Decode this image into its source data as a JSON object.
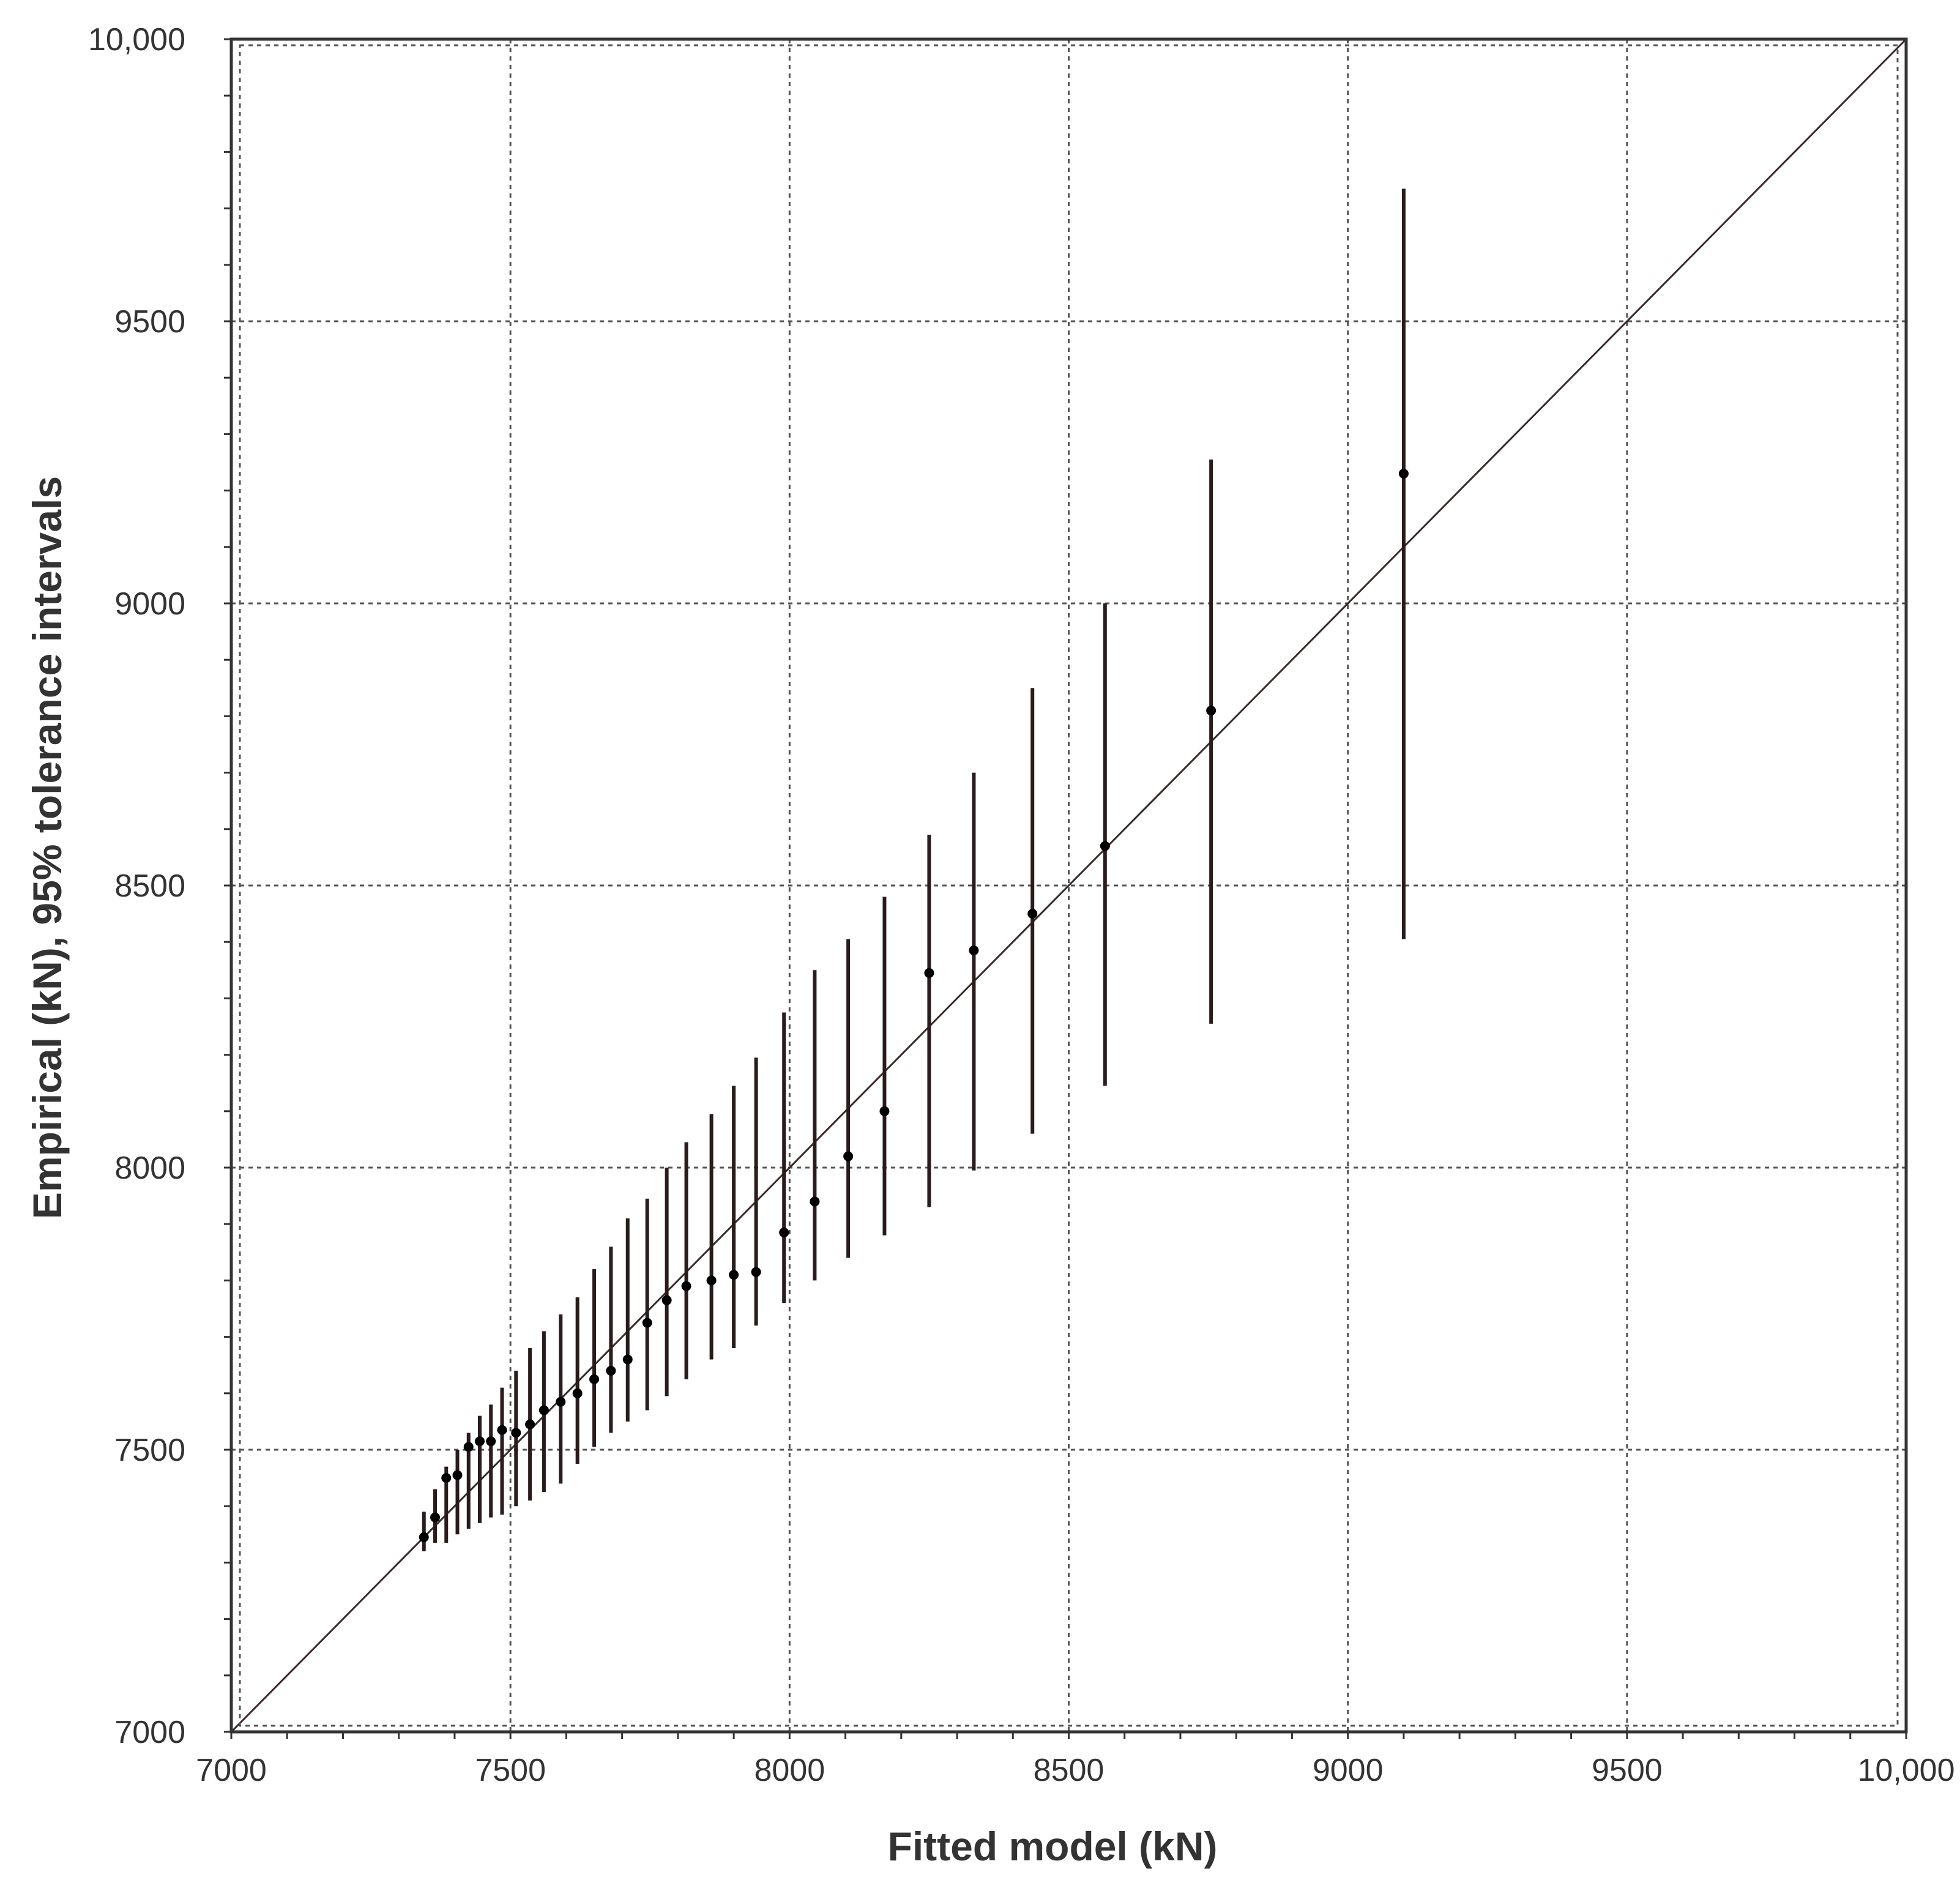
{
  "chart_data": {
    "type": "scatter",
    "title": "",
    "xlabel": "Fitted model (kN)",
    "ylabel": "Empirical (kN), 95% tolerance intervals",
    "xlim": [
      7000,
      10000
    ],
    "ylim": [
      7000,
      10000
    ],
    "x_ticks": [
      7000,
      7500,
      8000,
      8500,
      9000,
      9500,
      10000
    ],
    "x_tick_labels": [
      "7000",
      "7500",
      "8000",
      "8500",
      "9000",
      "9500",
      "10,000"
    ],
    "y_ticks": [
      7000,
      7500,
      8000,
      8500,
      9000,
      9500,
      10000
    ],
    "y_tick_labels": [
      "7000",
      "7500",
      "8000",
      "8500",
      "9000",
      "9500",
      "10,000"
    ],
    "grid": true,
    "reference_line": {
      "from": [
        7000,
        7000
      ],
      "to": [
        10000,
        10000
      ]
    },
    "points": [
      {
        "x": 7345,
        "y": 7345,
        "low": 7320,
        "high": 7390
      },
      {
        "x": 7365,
        "y": 7380,
        "low": 7335,
        "high": 7430
      },
      {
        "x": 7385,
        "y": 7450,
        "low": 7335,
        "high": 7470
      },
      {
        "x": 7405,
        "y": 7455,
        "low": 7350,
        "high": 7500
      },
      {
        "x": 7425,
        "y": 7505,
        "low": 7360,
        "high": 7530
      },
      {
        "x": 7445,
        "y": 7515,
        "low": 7370,
        "high": 7560
      },
      {
        "x": 7465,
        "y": 7515,
        "low": 7380,
        "high": 7580
      },
      {
        "x": 7485,
        "y": 7535,
        "low": 7385,
        "high": 7610
      },
      {
        "x": 7510,
        "y": 7530,
        "low": 7400,
        "high": 7640
      },
      {
        "x": 7535,
        "y": 7545,
        "low": 7410,
        "high": 7680
      },
      {
        "x": 7560,
        "y": 7570,
        "low": 7425,
        "high": 7710
      },
      {
        "x": 7590,
        "y": 7585,
        "low": 7440,
        "high": 7740
      },
      {
        "x": 7620,
        "y": 7600,
        "low": 7475,
        "high": 7770
      },
      {
        "x": 7650,
        "y": 7625,
        "low": 7505,
        "high": 7820
      },
      {
        "x": 7680,
        "y": 7640,
        "low": 7530,
        "high": 7860
      },
      {
        "x": 7710,
        "y": 7660,
        "low": 7550,
        "high": 7910
      },
      {
        "x": 7745,
        "y": 7725,
        "low": 7570,
        "high": 7945
      },
      {
        "x": 7780,
        "y": 7765,
        "low": 7595,
        "high": 8000
      },
      {
        "x": 7815,
        "y": 7790,
        "low": 7625,
        "high": 8045
      },
      {
        "x": 7860,
        "y": 7800,
        "low": 7660,
        "high": 8095
      },
      {
        "x": 7900,
        "y": 7810,
        "low": 7680,
        "high": 8145
      },
      {
        "x": 7940,
        "y": 7815,
        "low": 7720,
        "high": 8195
      },
      {
        "x": 7990,
        "y": 7885,
        "low": 7760,
        "high": 8275
      },
      {
        "x": 8045,
        "y": 7940,
        "low": 7800,
        "high": 8350
      },
      {
        "x": 8105,
        "y": 8020,
        "low": 7840,
        "high": 8405
      },
      {
        "x": 8170,
        "y": 8100,
        "low": 7880,
        "high": 8480
      },
      {
        "x": 8250,
        "y": 8345,
        "low": 7930,
        "high": 8590
      },
      {
        "x": 8330,
        "y": 8385,
        "low": 7995,
        "high": 8700
      },
      {
        "x": 8435,
        "y": 8450,
        "low": 8060,
        "high": 8850
      },
      {
        "x": 8565,
        "y": 8570,
        "low": 8145,
        "high": 9000
      },
      {
        "x": 8755,
        "y": 8810,
        "low": 8255,
        "high": 9255
      },
      {
        "x": 9100,
        "y": 9230,
        "low": 8405,
        "high": 9735
      }
    ],
    "colors": {
      "point": "#000000",
      "interval": "#2a1c1c",
      "reference_line": "#3a2a2a",
      "grid": "#555555",
      "frame": "#333333"
    }
  }
}
